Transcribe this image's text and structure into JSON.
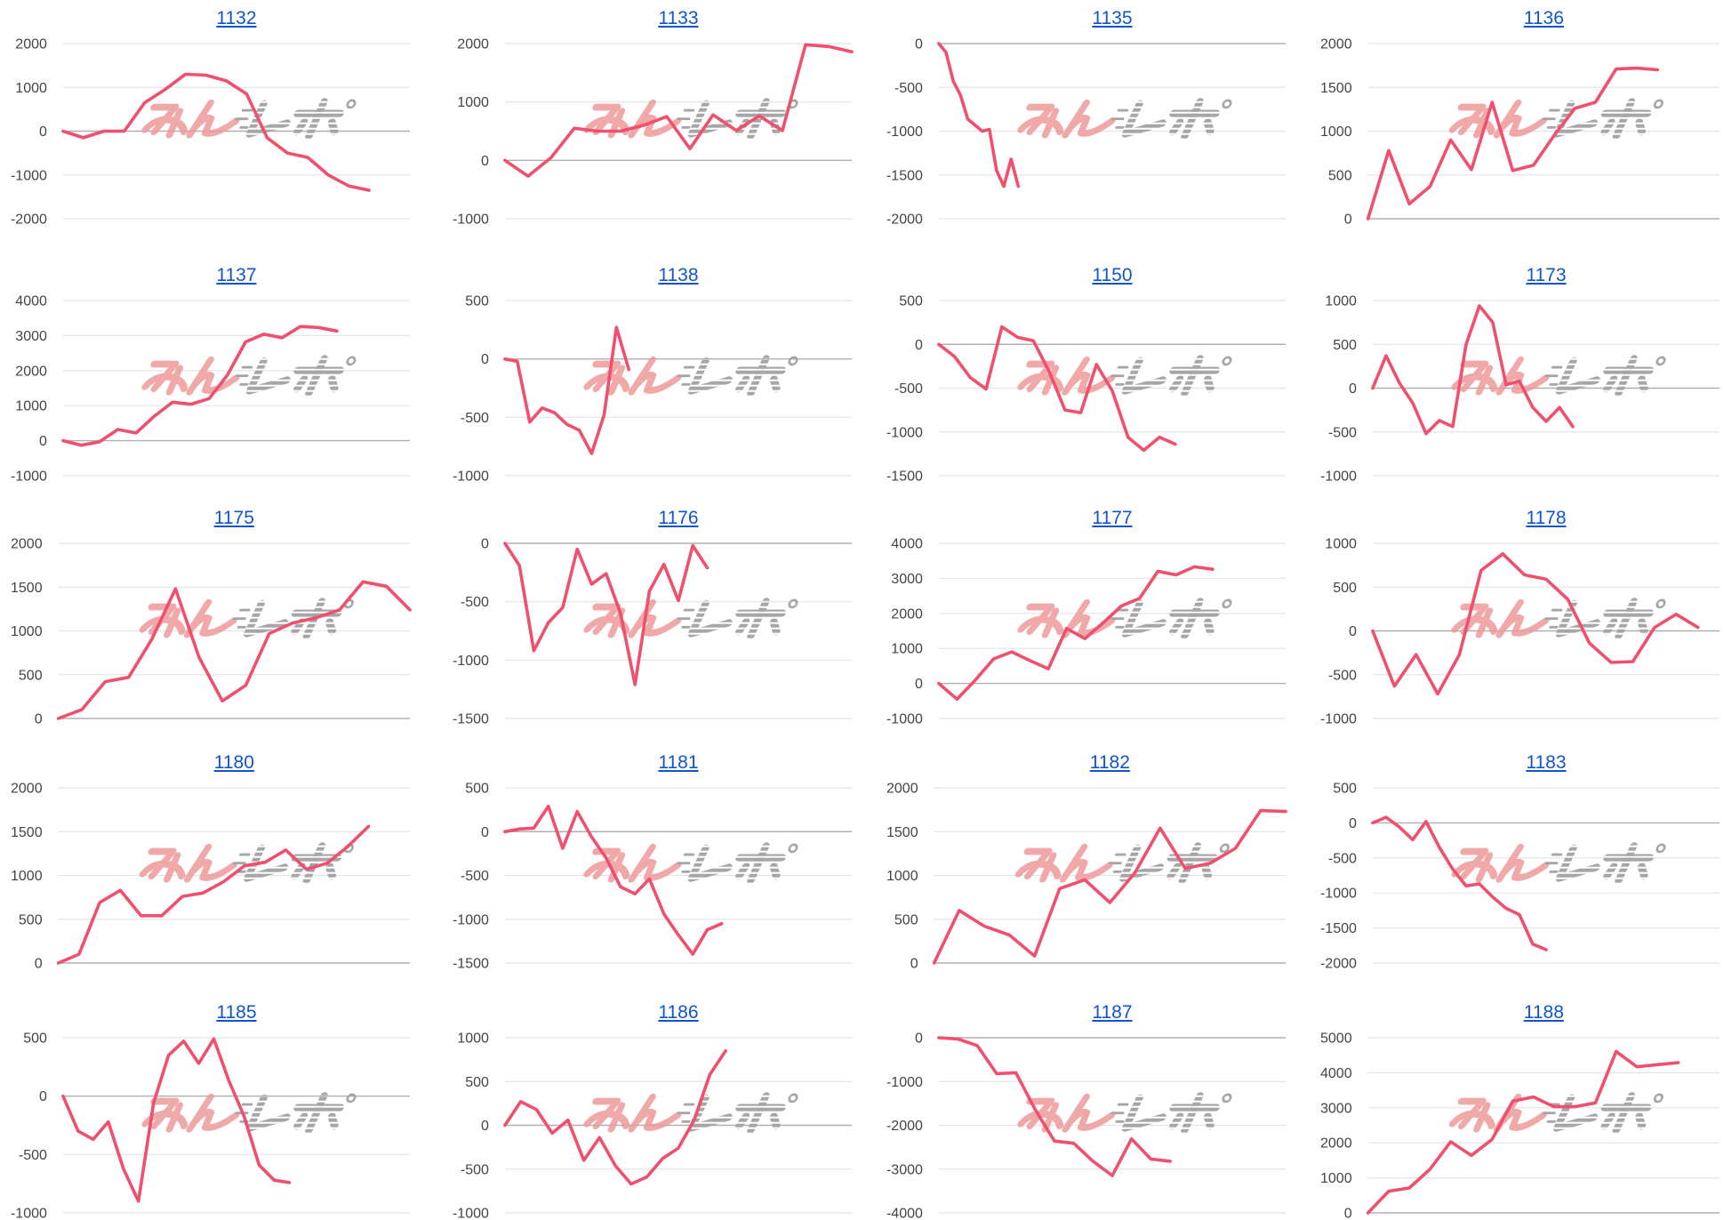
{
  "colors": {
    "background": "#ffffff",
    "series_line": "#f0506e",
    "title_link": "#1155cc",
    "gridline": "#e4e4e4",
    "zero_line": "#b0b0b0",
    "tick_label": "#444444",
    "watermark_pink": "#ee9a9a",
    "watermark_gray": "#a6a6a6"
  },
  "watermark": {
    "text": "みんレポ"
  },
  "chart_data": [
    {
      "type": "line",
      "title": "1132",
      "yticks": [
        2000,
        1000,
        0,
        -1000,
        -2000
      ],
      "ylim": [
        -2000,
        2000
      ],
      "xlim": [
        0,
        17
      ],
      "grid": true,
      "legend": "none",
      "series": [
        {
          "values": [
            0,
            -150,
            0,
            0,
            650,
            950,
            1300,
            1280,
            1150,
            850,
            -150,
            -500,
            -600,
            -1000,
            -1250,
            -1350
          ]
        }
      ]
    },
    {
      "type": "line",
      "title": "1133",
      "yticks": [
        2000,
        1000,
        0,
        -1000
      ],
      "ylim": [
        -1000,
        2000
      ],
      "xlim": [
        0,
        15
      ],
      "grid": true,
      "legend": "none",
      "series": [
        {
          "values": [
            0,
            -270,
            50,
            550,
            500,
            500,
            600,
            750,
            200,
            780,
            510,
            760,
            510,
            1980,
            1950,
            1860
          ]
        }
      ]
    },
    {
      "type": "line",
      "title": "1135",
      "yticks": [
        0,
        -500,
        -1000,
        -1500,
        -2000
      ],
      "ylim": [
        -2000,
        0
      ],
      "xlim": [
        0,
        48
      ],
      "grid": true,
      "legend": "none",
      "series": [
        {
          "values": [
            0,
            -100,
            -430,
            -590,
            -860,
            -930,
            -1000,
            -980,
            -1450,
            -1630,
            -1320,
            -1630
          ]
        }
      ]
    },
    {
      "type": "line",
      "title": "1136",
      "yticks": [
        2000,
        1500,
        1000,
        500,
        0
      ],
      "ylim": [
        0,
        2000
      ],
      "xlim": [
        0,
        17
      ],
      "grid": true,
      "legend": "none",
      "series": [
        {
          "values": [
            0,
            780,
            170,
            370,
            900,
            560,
            1330,
            550,
            610,
            950,
            1260,
            1330,
            1710,
            1720,
            1700
          ]
        }
      ]
    },
    {
      "type": "line",
      "title": "1137",
      "yticks": [
        4000,
        3000,
        2000,
        1000,
        0,
        -1000
      ],
      "ylim": [
        -1000,
        4000
      ],
      "xlim": [
        0,
        19
      ],
      "grid": true,
      "legend": "none",
      "series": [
        {
          "values": [
            0,
            -130,
            -30,
            320,
            220,
            700,
            1100,
            1040,
            1200,
            1870,
            2820,
            3040,
            2940,
            3260,
            3230,
            3130
          ]
        }
      ]
    },
    {
      "type": "line",
      "title": "1138",
      "yticks": [
        500,
        0,
        -500,
        -1000
      ],
      "ylim": [
        -1000,
        500
      ],
      "xlim": [
        0,
        28
      ],
      "grid": true,
      "legend": "none",
      "series": [
        {
          "values": [
            0,
            -20,
            -540,
            -420,
            -460,
            -560,
            -610,
            -810,
            -480,
            270,
            -90
          ]
        }
      ]
    },
    {
      "type": "line",
      "title": "1150",
      "yticks": [
        500,
        0,
        -500,
        -1000,
        -1500
      ],
      "ylim": [
        -1500,
        500
      ],
      "xlim": [
        0,
        22
      ],
      "grid": true,
      "legend": "none",
      "series": [
        {
          "values": [
            0,
            -140,
            -380,
            -510,
            200,
            80,
            40,
            -310,
            -750,
            -780,
            -230,
            -530,
            -1060,
            -1210,
            -1060,
            -1140
          ]
        }
      ]
    },
    {
      "type": "line",
      "title": "1173",
      "yticks": [
        1000,
        500,
        0,
        -500,
        -1000
      ],
      "ylim": [
        -1000,
        1000
      ],
      "xlim": [
        0,
        26
      ],
      "grid": true,
      "legend": "none",
      "series": [
        {
          "values": [
            0,
            370,
            60,
            -170,
            -520,
            -370,
            -440,
            500,
            940,
            750,
            40,
            80,
            -220,
            -380,
            -220,
            -440
          ]
        }
      ]
    },
    {
      "type": "line",
      "title": "1175",
      "yticks": [
        2000,
        1500,
        1000,
        500,
        0
      ],
      "ylim": [
        0,
        2000
      ],
      "xlim": [
        0,
        15
      ],
      "grid": true,
      "legend": "none",
      "series": [
        {
          "values": [
            0,
            100,
            420,
            470,
            910,
            1480,
            700,
            200,
            380,
            970,
            1090,
            1150,
            1240,
            1560,
            1510,
            1240
          ]
        }
      ]
    },
    {
      "type": "line",
      "title": "1176",
      "yticks": [
        0,
        -500,
        -1000,
        -1500
      ],
      "ylim": [
        -1500,
        0
      ],
      "xlim": [
        0,
        24
      ],
      "grid": true,
      "legend": "none",
      "series": [
        {
          "values": [
            0,
            -190,
            -920,
            -680,
            -550,
            -50,
            -350,
            -260,
            -600,
            -1210,
            -410,
            -180,
            -490,
            -20,
            -210
          ]
        }
      ]
    },
    {
      "type": "line",
      "title": "1177",
      "yticks": [
        4000,
        3000,
        2000,
        1000,
        0,
        -1000
      ],
      "ylim": [
        -1000,
        4000
      ],
      "xlim": [
        0,
        19
      ],
      "grid": true,
      "legend": "none",
      "series": [
        {
          "values": [
            0,
            -450,
            100,
            700,
            900,
            650,
            420,
            1570,
            1280,
            1730,
            2210,
            2430,
            3200,
            3100,
            3330,
            3260
          ]
        }
      ]
    },
    {
      "type": "line",
      "title": "1178",
      "yticks": [
        1000,
        500,
        0,
        -500,
        -1000
      ],
      "ylim": [
        -1000,
        1000
      ],
      "xlim": [
        0,
        16
      ],
      "grid": true,
      "legend": "none",
      "series": [
        {
          "values": [
            0,
            -630,
            -270,
            -720,
            -270,
            690,
            880,
            640,
            590,
            360,
            -140,
            -360,
            -350,
            40,
            190,
            40
          ]
        }
      ]
    },
    {
      "type": "line",
      "title": "1180",
      "yticks": [
        2000,
        1500,
        1000,
        500,
        0
      ],
      "ylim": [
        0,
        2000
      ],
      "xlim": [
        0,
        17
      ],
      "grid": true,
      "legend": "none",
      "series": [
        {
          "values": [
            0,
            100,
            690,
            830,
            540,
            540,
            760,
            800,
            930,
            1110,
            1150,
            1290,
            1070,
            1140,
            1330,
            1560
          ]
        }
      ]
    },
    {
      "type": "line",
      "title": "1181",
      "yticks": [
        500,
        0,
        -500,
        -1000,
        -1500
      ],
      "ylim": [
        -1500,
        500
      ],
      "xlim": [
        0,
        24
      ],
      "grid": true,
      "legend": "none",
      "series": [
        {
          "values": [
            0,
            30,
            40,
            290,
            -190,
            230,
            -60,
            -300,
            -630,
            -710,
            -540,
            -940,
            -1180,
            -1400,
            -1120,
            -1050
          ]
        }
      ]
    },
    {
      "type": "line",
      "title": "1182",
      "yticks": [
        2000,
        1500,
        1000,
        500,
        0
      ],
      "ylim": [
        0,
        2000
      ],
      "xlim": [
        0,
        14
      ],
      "grid": true,
      "legend": "none",
      "series": [
        {
          "values": [
            0,
            600,
            420,
            320,
            80,
            850,
            950,
            690,
            1030,
            1540,
            1080,
            1140,
            1310,
            1740,
            1730
          ]
        }
      ]
    },
    {
      "type": "line",
      "title": "1183",
      "yticks": [
        500,
        0,
        -500,
        -1000,
        -1500,
        -2000
      ],
      "ylim": [
        -2000,
        500
      ],
      "xlim": [
        0,
        26
      ],
      "grid": true,
      "legend": "none",
      "series": [
        {
          "values": [
            0,
            80,
            -60,
            -240,
            20,
            -350,
            -660,
            -900,
            -870,
            -1060,
            -1220,
            -1310,
            -1730,
            -1810
          ]
        }
      ]
    },
    {
      "type": "line",
      "title": "1185",
      "yticks": [
        500,
        0,
        -500,
        -1000
      ],
      "ylim": [
        -1000,
        500
      ],
      "xlim": [
        0,
        23
      ],
      "grid": true,
      "legend": "none",
      "series": [
        {
          "values": [
            0,
            -300,
            -370,
            -220,
            -620,
            -900,
            -60,
            350,
            470,
            280,
            490,
            130,
            -170,
            -590,
            -720,
            -740
          ]
        }
      ]
    },
    {
      "type": "line",
      "title": "1186",
      "yticks": [
        1000,
        500,
        0,
        -500,
        -1000
      ],
      "ylim": [
        -1000,
        1000
      ],
      "xlim": [
        0,
        22
      ],
      "grid": true,
      "legend": "none",
      "series": [
        {
          "values": [
            0,
            270,
            180,
            -90,
            60,
            -400,
            -140,
            -460,
            -670,
            -590,
            -380,
            -260,
            60,
            580,
            850
          ]
        }
      ]
    },
    {
      "type": "line",
      "title": "1187",
      "yticks": [
        0,
        -1000,
        -2000,
        -3000,
        -4000
      ],
      "ylim": [
        -4000,
        0
      ],
      "xlim": [
        0,
        18
      ],
      "grid": true,
      "legend": "none",
      "series": [
        {
          "values": [
            0,
            -30,
            -180,
            -820,
            -800,
            -1640,
            -2360,
            -2410,
            -2820,
            -3150,
            -2310,
            -2770,
            -2820
          ]
        }
      ]
    },
    {
      "type": "line",
      "title": "1188",
      "yticks": [
        5000,
        4000,
        3000,
        2000,
        1000,
        0
      ],
      "ylim": [
        0,
        5000
      ],
      "xlim": [
        0,
        17
      ],
      "grid": true,
      "legend": "none",
      "series": [
        {
          "values": [
            0,
            620,
            710,
            1250,
            2030,
            1640,
            2100,
            3190,
            3310,
            3030,
            3030,
            3140,
            4610,
            4170,
            4230,
            4290
          ]
        }
      ]
    }
  ]
}
